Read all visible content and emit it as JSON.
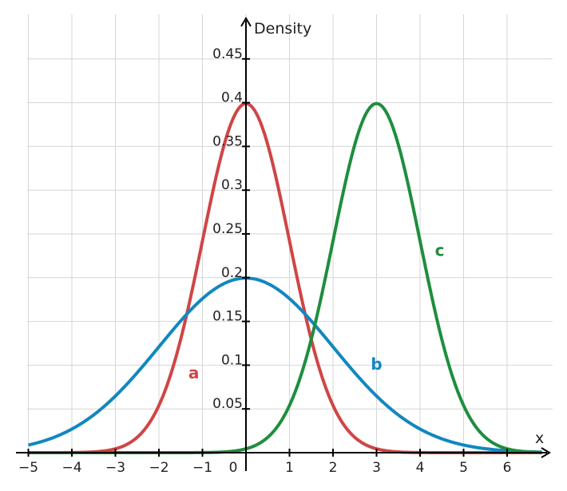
{
  "chart_data": {
    "type": "line",
    "title": "",
    "xlabel": "x",
    "ylabel": "Density",
    "xlim": [
      -5,
      6.8
    ],
    "ylim": [
      0,
      0.49
    ],
    "x_ticks": [
      {
        "value": -5,
        "label": "−5"
      },
      {
        "value": -4,
        "label": "−4"
      },
      {
        "value": -3,
        "label": "−3"
      },
      {
        "value": -2,
        "label": "−2"
      },
      {
        "value": -1,
        "label": "−1"
      },
      {
        "value": 0,
        "label": "0"
      },
      {
        "value": 1,
        "label": "1"
      },
      {
        "value": 2,
        "label": "2"
      },
      {
        "value": 3,
        "label": "3"
      },
      {
        "value": 4,
        "label": "4"
      },
      {
        "value": 5,
        "label": "5"
      },
      {
        "value": 6,
        "label": "6"
      }
    ],
    "y_ticks": [
      {
        "value": 0.05,
        "label": "0.05"
      },
      {
        "value": 0.1,
        "label": "0.1"
      },
      {
        "value": 0.15,
        "label": "0.15"
      },
      {
        "value": 0.2,
        "label": "0.2"
      },
      {
        "value": 0.25,
        "label": "0.25"
      },
      {
        "value": 0.3,
        "label": "0.3"
      },
      {
        "value": 0.35,
        "label": "0.35"
      },
      {
        "value": 0.4,
        "label": "0.4"
      },
      {
        "value": 0.45,
        "label": "0.45"
      }
    ],
    "grid": true,
    "series": [
      {
        "name": "a",
        "color": "#d04545",
        "mean": 0,
        "sd": 1,
        "label_at": [
          -1.2,
          0.085
        ]
      },
      {
        "name": "b",
        "color": "#1287c0",
        "mean": 0,
        "sd": 2,
        "label_at": [
          3,
          0.095
        ]
      },
      {
        "name": "c",
        "color": "#1e8e3e",
        "mean": 3,
        "sd": 1,
        "label_at": [
          4.45,
          0.225
        ]
      }
    ]
  }
}
